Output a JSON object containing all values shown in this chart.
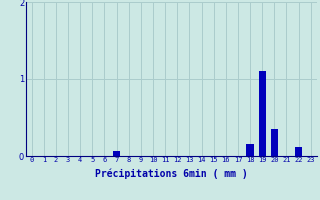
{
  "hours": [
    0,
    1,
    2,
    3,
    4,
    5,
    6,
    7,
    8,
    9,
    10,
    11,
    12,
    13,
    14,
    15,
    16,
    17,
    18,
    19,
    20,
    21,
    22,
    23
  ],
  "values": [
    0,
    0,
    0,
    0,
    0,
    0,
    0,
    0.07,
    0,
    0,
    0,
    0,
    0,
    0,
    0,
    0,
    0,
    0,
    0.15,
    1.1,
    0.35,
    0,
    0.12,
    0
  ],
  "bar_color": "#0000bb",
  "background_color": "#cce8e4",
  "grid_color": "#aacccc",
  "axis_color": "#000080",
  "text_color": "#0000aa",
  "xlabel": "Précipitations 6min ( mm )",
  "ylim": [
    0,
    2
  ],
  "xlim": [
    -0.5,
    23.5
  ],
  "yticks": [
    0,
    1,
    2
  ],
  "xticks": [
    0,
    1,
    2,
    3,
    4,
    5,
    6,
    7,
    8,
    9,
    10,
    11,
    12,
    13,
    14,
    15,
    16,
    17,
    18,
    19,
    20,
    21,
    22,
    23
  ],
  "bar_width": 0.6,
  "xlabel_fontsize": 7,
  "xtick_fontsize": 5,
  "ytick_fontsize": 6
}
